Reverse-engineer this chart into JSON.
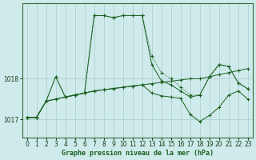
{
  "title": "Graphe pression niveau de la mer (hPa)",
  "bg_color": "#ceeaea",
  "grid_color": "#aacccc",
  "line_color": "#1a6020",
  "xlim": [
    -0.5,
    23.5
  ],
  "ylim": [
    1016.55,
    1019.85
  ],
  "yticks": [
    1017,
    1018
  ],
  "xticks": [
    0,
    1,
    2,
    3,
    4,
    5,
    6,
    7,
    8,
    9,
    10,
    11,
    12,
    13,
    14,
    15,
    16,
    17,
    18,
    19,
    20,
    21,
    22,
    23
  ],
  "series": [
    {
      "x": [
        0,
        1,
        2,
        3,
        4,
        5,
        6,
        7,
        8,
        9,
        10,
        11,
        12,
        13,
        14,
        15,
        16,
        17,
        18,
        19,
        20,
        21,
        22,
        23
      ],
      "y": [
        1017.05,
        1017.05,
        1017.45,
        1018.05,
        1017.55,
        1017.6,
        1017.65,
        1019.55,
        1019.55,
        1019.5,
        1019.55,
        1019.55,
        1019.55,
        1018.55,
        1018.15,
        1018.0,
        1017.8,
        1017.6,
        1017.6,
        1018.05,
        1018.35,
        1018.3,
        1017.9,
        1017.75
      ],
      "linestyle": "dotted"
    },
    {
      "x": [
        0,
        1,
        2,
        3,
        4,
        5,
        6,
        7,
        8,
        9,
        10,
        11,
        12,
        13,
        14,
        15,
        16,
        17,
        18,
        19,
        20,
        21,
        22,
        23
      ],
      "y": [
        1017.05,
        1017.05,
        1017.45,
        1018.05,
        1017.55,
        1017.6,
        1017.65,
        1019.55,
        1019.55,
        1019.5,
        1019.55,
        1019.55,
        1019.55,
        1018.35,
        1017.95,
        1017.85,
        1017.7,
        1017.55,
        1017.6,
        1018.05,
        1018.35,
        1018.3,
        1017.9,
        1017.75
      ],
      "linestyle": "solid"
    },
    {
      "x": [
        0,
        1,
        2,
        3,
        4,
        5,
        6,
        7,
        8,
        9,
        10,
        11,
        12,
        13,
        14,
        15,
        16,
        17,
        18,
        19,
        20,
        21,
        22,
        23
      ],
      "y": [
        1017.05,
        1017.05,
        1017.45,
        1017.5,
        1017.55,
        1017.6,
        1017.65,
        1017.7,
        1017.73,
        1017.76,
        1017.79,
        1017.82,
        1017.85,
        1017.88,
        1017.91,
        1017.94,
        1017.97,
        1018.0,
        1018.0,
        1018.05,
        1018.1,
        1018.15,
        1018.2,
        1018.25
      ],
      "linestyle": "solid"
    },
    {
      "x": [
        0,
        1,
        2,
        3,
        4,
        5,
        6,
        7,
        8,
        9,
        10,
        11,
        12,
        13,
        14,
        15,
        16,
        17,
        18,
        19,
        20,
        21,
        22,
        23
      ],
      "y": [
        1017.05,
        1017.05,
        1017.45,
        1017.5,
        1017.55,
        1017.6,
        1017.65,
        1017.7,
        1017.73,
        1017.76,
        1017.79,
        1017.82,
        1017.85,
        1017.65,
        1017.58,
        1017.55,
        1017.52,
        1017.12,
        1016.95,
        1017.1,
        1017.3,
        1017.6,
        1017.7,
        1017.5
      ],
      "linestyle": "solid"
    }
  ]
}
